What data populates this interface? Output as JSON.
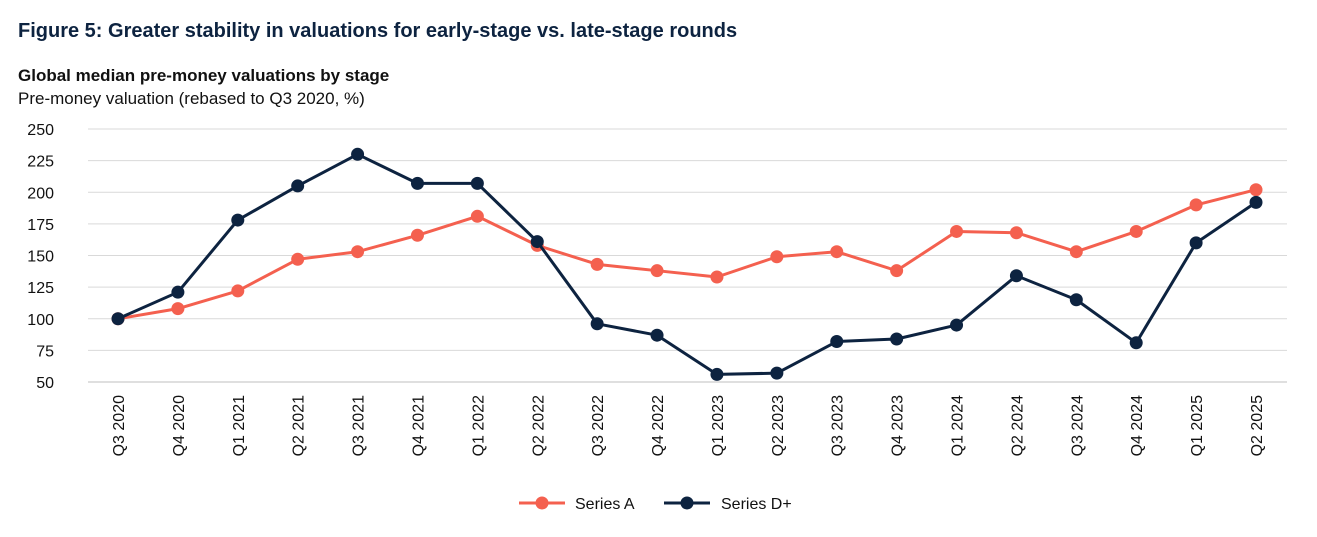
{
  "figure_title": "Figure 5: Greater stability in valuations for early-stage vs. late-stage rounds",
  "chart_data": {
    "type": "line",
    "title": "Global median pre-money valuations by stage",
    "subtitle": "Pre-money valuation (rebased to Q3 2020, %)",
    "categories": [
      "Q3 2020",
      "Q4 2020",
      "Q1 2021",
      "Q2 2021",
      "Q3 2021",
      "Q4 2021",
      "Q1 2022",
      "Q2 2022",
      "Q3 2022",
      "Q4 2022",
      "Q1 2023",
      "Q2 2023",
      "Q3 2023",
      "Q4 2023",
      "Q1 2024",
      "Q2 2024",
      "Q3 2024",
      "Q4 2024",
      "Q1 2025",
      "Q2 2025"
    ],
    "series": [
      {
        "name": "Series A",
        "color": "#f4604f",
        "values": [
          100,
          108,
          122,
          147,
          153,
          166,
          181,
          158,
          143,
          138,
          133,
          149,
          153,
          138,
          169,
          168,
          153,
          169,
          190,
          202
        ]
      },
      {
        "name": "Series D+",
        "color": "#0d2340",
        "values": [
          100,
          121,
          178,
          205,
          230,
          207,
          207,
          161,
          96,
          87,
          56,
          57,
          82,
          84,
          95,
          134,
          115,
          81,
          160,
          192
        ]
      }
    ],
    "ylim": [
      50,
      250
    ],
    "yticks": [
      50,
      75,
      100,
      125,
      150,
      175,
      200,
      225,
      250
    ],
    "grid": true,
    "legend_position": "bottom-center"
  }
}
